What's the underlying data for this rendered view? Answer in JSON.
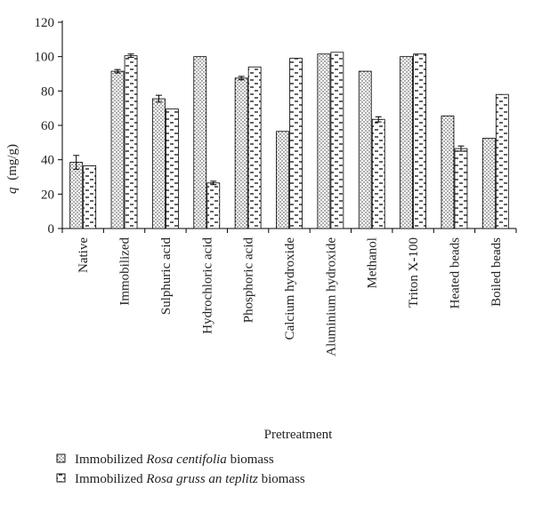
{
  "chart_data": {
    "type": "bar",
    "title": "",
    "xlabel": "Pretreatment",
    "ylabel_italic": "q",
    "ylabel_unit": "(mg/g)",
    "ylim": [
      0,
      120
    ],
    "yticks": [
      0,
      20,
      40,
      60,
      80,
      100,
      120
    ],
    "grid": false,
    "legend_position": "bottom-left",
    "categories": [
      "Native",
      "Immobilized",
      "Sulphuric acid",
      "Hydrochloric acid",
      "Phosphoric acid",
      "Calcium hydroxide",
      "Aluminium hydroxide",
      "Methanol",
      "Triton X-100",
      "Heated beads",
      "Boiled beads"
    ],
    "series": [
      {
        "legend_prefix": "Immobilized ",
        "legend_italic": "Rosa centifolia",
        "legend_suffix": " biomass",
        "pattern": "dots",
        "values": [
          38.5,
          91.5,
          75.5,
          100,
          87.5,
          56.5,
          101.5,
          91.5,
          100,
          65.5,
          52.5
        ],
        "errors": [
          4,
          1,
          2,
          0,
          1,
          0,
          0,
          0,
          0,
          0,
          0
        ]
      },
      {
        "legend_prefix": "Immobilized ",
        "legend_italic": "Rosa gruss an teplitz",
        "legend_suffix": " biomass",
        "pattern": "dashes",
        "values": [
          36.5,
          100.5,
          69.5,
          26.5,
          94,
          99,
          102.5,
          63.5,
          101.5,
          46.5,
          78
        ],
        "errors": [
          0,
          1,
          0,
          1,
          0,
          0,
          0,
          1.5,
          0,
          1.5,
          0
        ]
      }
    ]
  }
}
